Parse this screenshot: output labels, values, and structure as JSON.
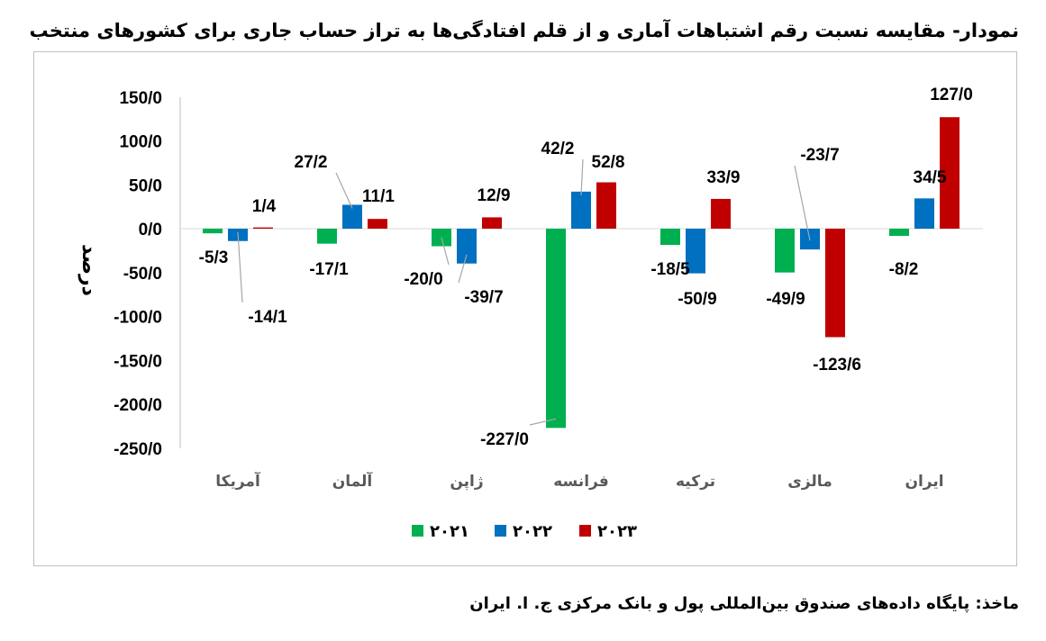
{
  "title": "نمودار- مقایسه نسبت رقم اشتباهات آماری و از قلم افتادگی‌ها به تراز حساب جاری برای کشورهای منتخب",
  "source": "ماخذ: پایگاه داده‌های صندوق بین‌المللی پول و بانک مرکزی ج. ا. ایران",
  "chart_data": {
    "type": "bar",
    "title": "",
    "ylabel": "درصد",
    "xlabel": "",
    "ylim": [
      -250,
      150
    ],
    "yticks": [
      150,
      100,
      50,
      0,
      -50,
      -100,
      -150,
      -200,
      -250
    ],
    "ytick_labels": [
      "150/0",
      "100/0",
      "50/0",
      "0/0",
      "-50/0",
      "-100/0",
      "-150/0",
      "-200/0",
      "-250/0"
    ],
    "grid": false,
    "legend": "bottom",
    "categories": [
      "آمریکا",
      "آلمان",
      "ژاپن",
      "فرانسه",
      "ترکیه",
      "مالزی",
      "ایران"
    ],
    "series": [
      {
        "name": "۲۰۲۱",
        "color": "#00b050",
        "values": [
          -5.3,
          -17.1,
          -20.0,
          -227.0,
          -18.5,
          -49.9,
          -8.2
        ],
        "labels": [
          "-5/3",
          "-17/1",
          "-20/0",
          "-227/0",
          "-18/5",
          "-49/9",
          "-8/2"
        ]
      },
      {
        "name": "۲۰۲۲",
        "color": "#0070c0",
        "values": [
          -14.1,
          27.2,
          -39.7,
          42.2,
          -50.9,
          -23.7,
          34.5
        ],
        "labels": [
          "-14/1",
          "27/2",
          "-39/7",
          "42/2",
          "-50/9",
          "-23/7",
          "34/5"
        ]
      },
      {
        "name": "۲۰۲۳",
        "color": "#c00000",
        "values": [
          1.4,
          11.1,
          12.9,
          52.8,
          33.9,
          -123.6,
          127.0
        ],
        "labels": [
          "1/4",
          "11/1",
          "12/9",
          "52/8",
          "33/9",
          "-123/6",
          "127/0"
        ]
      }
    ]
  }
}
